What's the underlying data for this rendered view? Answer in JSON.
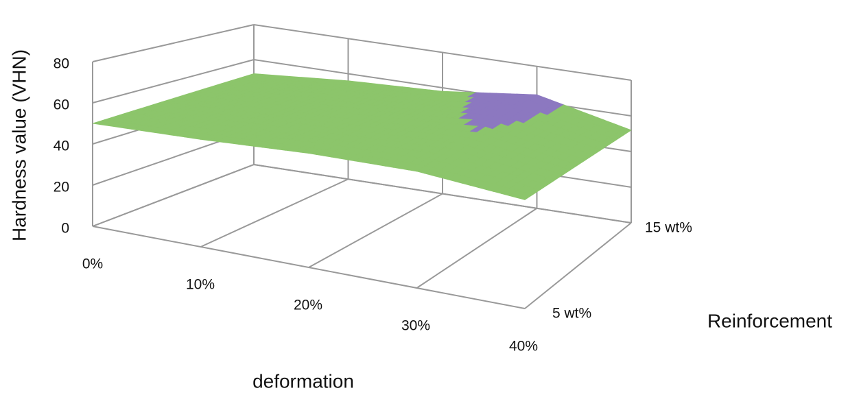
{
  "chart_data": {
    "type": "surface",
    "y_label": "Hardness value (VHN)",
    "x_label": "deformation",
    "z_label": "Reinforcement",
    "categories": [
      "0%",
      "10%",
      "20%",
      "30%",
      "40%"
    ],
    "series": [
      {
        "name": "5 wt%",
        "values": [
          50,
          52,
          55,
          56,
          52
        ]
      },
      {
        "name": "15 wt%",
        "values": [
          52,
          56,
          58,
          64,
          52
        ]
      }
    ],
    "ylim": [
      0,
      80
    ],
    "yticks": [
      0,
      20,
      40,
      60,
      80
    ],
    "band_colors": [
      "#4f81bd",
      "#c0504d",
      "#8cc56b",
      "#8c78c0"
    ],
    "grid": true
  }
}
